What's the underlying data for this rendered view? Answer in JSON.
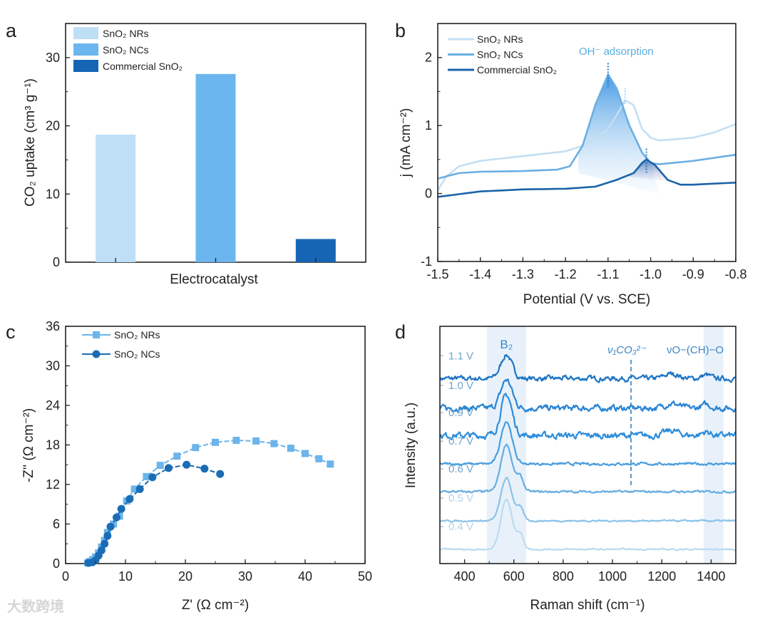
{
  "panel_letters": [
    "a",
    "b",
    "c",
    "d"
  ],
  "watermark": "大数跨境",
  "chart_data": [
    {
      "id": "a",
      "type": "bar",
      "title": "",
      "xlabel": "Electrocatalyst",
      "ylabel": "CO₂ uptake (cm³ g⁻¹)",
      "ylim": [
        0,
        35
      ],
      "yticks": [
        0,
        10,
        20,
        30
      ],
      "categories": [
        "SnO₂ NRs",
        "SnO₂ NCs",
        "Commercial SnO₂"
      ],
      "values": [
        18.7,
        27.6,
        3.4
      ],
      "colors": [
        "#bfdff7",
        "#6cb6ef",
        "#1565b4"
      ],
      "legend": "top-left"
    },
    {
      "id": "b",
      "type": "line",
      "xlabel": "Potential (V vs. SCE)",
      "ylabel": "j (mA cm⁻²)",
      "xlim": [
        -1.5,
        -0.8
      ],
      "ylim": [
        -1,
        2.5
      ],
      "xticks": [
        -1.5,
        -1.4,
        -1.3,
        -1.2,
        -1.1,
        -1.0,
        -0.9,
        -0.8
      ],
      "xtick_labels": [
        "-1.5",
        "-1.4",
        "-1.3",
        "-1.2",
        "-1.1",
        "-1.0",
        "-0.9",
        "-0.8"
      ],
      "yticks": [
        -1,
        0,
        1,
        2
      ],
      "annotation": "OH⁻ adsorption",
      "peak_markers": [
        {
          "x": -1.1,
          "y_top": 1.92,
          "y_bottom": 1.55
        },
        {
          "x": -1.06,
          "y_top": 1.55,
          "y_bottom": 1.3
        },
        {
          "x": -1.01,
          "y_top": 0.66,
          "y_bottom": 0.3
        }
      ],
      "legend": "top-left",
      "series": [
        {
          "name": "SnO₂ NRs",
          "color": "#c3dff3",
          "x": [
            -1.5,
            -1.48,
            -1.45,
            -1.4,
            -1.3,
            -1.2,
            -1.15,
            -1.1,
            -1.08,
            -1.06,
            -1.04,
            -1.02,
            -1.0,
            -0.98,
            -0.9,
            -0.85,
            -0.8
          ],
          "y": [
            0.05,
            0.25,
            0.4,
            0.48,
            0.55,
            0.62,
            0.72,
            0.95,
            1.15,
            1.37,
            1.3,
            0.95,
            0.82,
            0.78,
            0.82,
            0.9,
            1.02
          ]
        },
        {
          "name": "SnO₂ NCs",
          "color": "#6aafe3",
          "x": [
            -1.5,
            -1.45,
            -1.4,
            -1.3,
            -1.22,
            -1.19,
            -1.16,
            -1.13,
            -1.1,
            -1.08,
            -1.05,
            -1.02,
            -1.0,
            -0.98,
            -0.9,
            -0.8
          ],
          "y": [
            0.22,
            0.3,
            0.32,
            0.33,
            0.35,
            0.4,
            0.7,
            1.3,
            1.75,
            1.55,
            1.0,
            0.6,
            0.45,
            0.43,
            0.48,
            0.57
          ]
        },
        {
          "name": "Commercial SnO₂",
          "color": "#1a63a8",
          "x": [
            -1.5,
            -1.4,
            -1.3,
            -1.2,
            -1.13,
            -1.08,
            -1.04,
            -1.02,
            -1.01,
            -0.99,
            -0.96,
            -0.93,
            -0.9,
            -0.8
          ],
          "y": [
            -0.05,
            0.03,
            0.06,
            0.07,
            0.1,
            0.2,
            0.3,
            0.45,
            0.5,
            0.42,
            0.2,
            0.13,
            0.13,
            0.16
          ]
        }
      ]
    },
    {
      "id": "c",
      "type": "scatter",
      "xlabel": "Z' (Ω cm⁻²)",
      "ylabel": "-Z'' (Ω cm⁻²)",
      "xlim": [
        0,
        50
      ],
      "ylim": [
        0,
        36
      ],
      "xticks": [
        0,
        10,
        20,
        30,
        40,
        50
      ],
      "yticks": [
        0,
        6,
        12,
        18,
        24,
        30,
        36
      ],
      "legend": "top-left",
      "series": [
        {
          "name": "SnO₂ NRs",
          "marker": "square",
          "color": "#6cb4ea",
          "x": [
            3.7,
            4,
            4.5,
            5,
            5.5,
            6,
            6.5,
            7,
            8,
            9,
            10.2,
            11.5,
            13.5,
            15.8,
            18.6,
            21.7,
            25,
            28.5,
            31.8,
            34.8,
            37.6,
            40,
            42.3,
            44.2
          ],
          "y": [
            0.1,
            0.3,
            0.6,
            1,
            1.6,
            2.5,
            3.5,
            4.7,
            6,
            7.2,
            9.5,
            11.3,
            13.2,
            14.9,
            16.3,
            17.6,
            18.4,
            18.7,
            18.6,
            18.2,
            17.5,
            16.7,
            15.9,
            15.1
          ]
        },
        {
          "name": "SnO₂ NCs",
          "marker": "circle",
          "color": "#1b6cb5",
          "x": [
            3.8,
            4.5,
            5,
            5.5,
            6,
            6.5,
            7,
            7.5,
            8.5,
            9.3,
            10.7,
            12.4,
            14.5,
            17.2,
            20.2,
            23.2,
            25.8
          ],
          "y": [
            0.1,
            0.2,
            0.5,
            1.2,
            2,
            3,
            4.2,
            5.6,
            7,
            8.3,
            9.8,
            11.3,
            13.1,
            14.5,
            15,
            14.4,
            13.6
          ]
        }
      ]
    },
    {
      "id": "d",
      "type": "line",
      "xlabel": "Raman shift (cm⁻¹)",
      "ylabel": "Intensity (a.u.)",
      "xlim": [
        300,
        1500
      ],
      "ylim": [
        0,
        100
      ],
      "xticks": [
        400,
        600,
        800,
        1000,
        1200,
        1400
      ],
      "bands": [
        {
          "label": "B₂",
          "from": 490,
          "to": 650
        },
        {
          "label": "νO−(CH)−O",
          "from": 1370,
          "to": 1450
        }
      ],
      "dashed_marker": {
        "label": "ν₁CO₃²⁻",
        "x": 1075
      },
      "peak_center": 570,
      "series": [
        {
          "name": "1.1 V",
          "offset": 78,
          "peak": 10,
          "color": "#1f76c6"
        },
        {
          "name": "1.0 V",
          "offset": 65.5,
          "peak": 12,
          "color": "#2884d4"
        },
        {
          "name": "0.9 V",
          "offset": 54,
          "peak": 17,
          "color": "#2d8ddb"
        },
        {
          "name": "0.7 V",
          "offset": 42,
          "peak": 18,
          "color": "#4a9ede"
        },
        {
          "name": "0.6 V",
          "offset": 30.3,
          "peak": 20,
          "color": "#66ade0"
        },
        {
          "name": "0.5 V",
          "offset": 18,
          "peak": 18,
          "color": "#8cc2e8"
        },
        {
          "name": "0.4 V",
          "offset": 6,
          "peak": 21,
          "color": "#bcdbf0"
        }
      ]
    }
  ]
}
